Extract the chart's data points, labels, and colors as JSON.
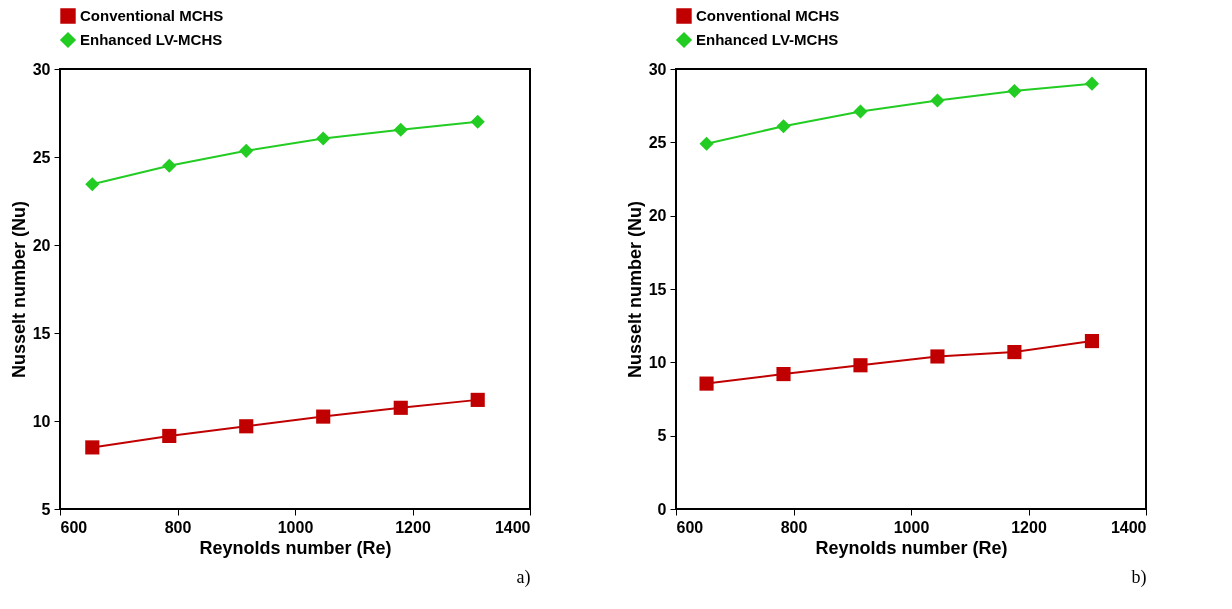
{
  "chart_data": [
    {
      "type": "line",
      "xlabel": "Reynolds number (Re)",
      "ylabel": "Nusselt number (Nu)",
      "annotations": [
        "a)"
      ],
      "legend": "top",
      "grid": false,
      "xlim": [
        600,
        1400
      ],
      "xticks": [
        600,
        800,
        1000,
        1200,
        1400
      ],
      "ylim": [
        5,
        30
      ],
      "yticks": [
        5,
        10,
        15,
        20,
        25,
        30
      ],
      "series": [
        {
          "name": "Conventional MCHS",
          "color": "#c00000",
          "marker": "square",
          "x": [
            655,
            786,
            917,
            1048,
            1180,
            1311
          ],
          "values": [
            8.5,
            9.15,
            9.7,
            10.25,
            10.75,
            11.2
          ]
        },
        {
          "name": "Enhanced LV-MCHS",
          "color": "#22cc22",
          "marker": "diamond",
          "x": [
            655,
            786,
            917,
            1048,
            1180,
            1311
          ],
          "values": [
            23.45,
            24.5,
            25.35,
            26.05,
            26.55,
            27.0
          ]
        }
      ]
    },
    {
      "type": "line",
      "xlabel": "Reynolds number (Re)",
      "ylabel": "Nusselt number (Nu)",
      "annotations": [
        "b)"
      ],
      "legend": "top",
      "grid": false,
      "xlim": [
        600,
        1400
      ],
      "xticks": [
        600,
        800,
        1000,
        1200,
        1400
      ],
      "ylim": [
        0,
        30
      ],
      "yticks": [
        0,
        5,
        10,
        15,
        20,
        25,
        30
      ],
      "series": [
        {
          "name": "Conventional MCHS",
          "color": "#c00000",
          "marker": "square",
          "x": [
            652,
            783,
            914,
            1045,
            1176,
            1308
          ],
          "values": [
            8.55,
            9.2,
            9.8,
            10.4,
            10.7,
            11.45
          ]
        },
        {
          "name": "Enhanced LV-MCHS",
          "color": "#22cc22",
          "marker": "diamond",
          "x": [
            652,
            783,
            914,
            1045,
            1176,
            1308
          ],
          "values": [
            24.9,
            26.1,
            27.1,
            27.85,
            28.5,
            29.0
          ]
        }
      ]
    }
  ]
}
